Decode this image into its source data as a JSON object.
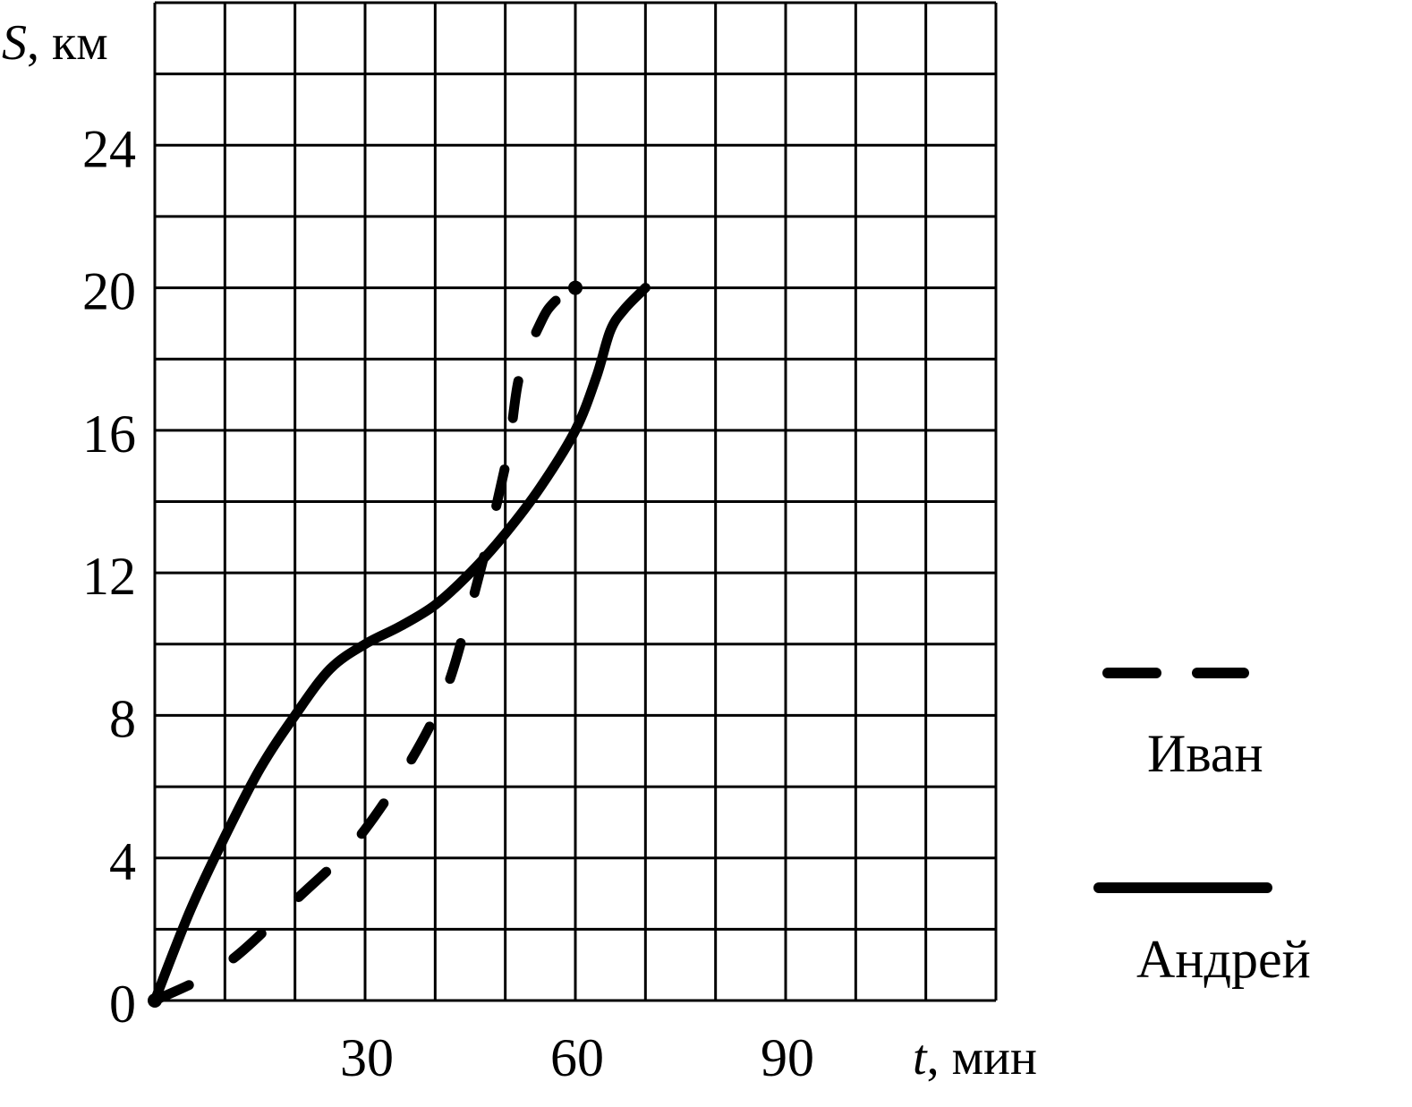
{
  "chart_data": {
    "type": "line",
    "title": "",
    "xlabel": {
      "var": "t",
      "unit": ", мин"
    },
    "ylabel": {
      "var": "S",
      "unit": ", км"
    },
    "xlim": [
      0,
      120
    ],
    "ylim": [
      0,
      28
    ],
    "grid": true,
    "x_grid_step": 10,
    "y_grid_step": 2,
    "x_ticks": [
      {
        "value": 30,
        "label": "30"
      },
      {
        "value": 60,
        "label": "60"
      },
      {
        "value": 90,
        "label": "90"
      }
    ],
    "y_ticks": [
      {
        "value": 0,
        "label": "0"
      },
      {
        "value": 4,
        "label": "4"
      },
      {
        "value": 8,
        "label": "8"
      },
      {
        "value": 12,
        "label": "12"
      },
      {
        "value": 16,
        "label": "16"
      },
      {
        "value": 20,
        "label": "20"
      },
      {
        "value": 24,
        "label": "24"
      }
    ],
    "legend_position": "right",
    "series": [
      {
        "name": "Иван",
        "style": "dashed",
        "color": "#000000",
        "x": [
          0,
          10,
          20,
          30,
          40,
          45,
          50,
          52,
          55,
          57,
          60
        ],
        "y": [
          0,
          1,
          2.8,
          4.8,
          8,
          11,
          15,
          17.5,
          19,
          19.6,
          20
        ],
        "end_marker": true
      },
      {
        "name": "Андрей",
        "style": "solid",
        "color": "#000000",
        "x": [
          0,
          5,
          10,
          15,
          20,
          25,
          30,
          35,
          40,
          45,
          50,
          55,
          60,
          63,
          65,
          67,
          70
        ],
        "y": [
          0,
          2.5,
          4.6,
          6.5,
          8,
          9.3,
          10,
          10.5,
          11.1,
          12,
          13.1,
          14.4,
          16,
          17.5,
          18.8,
          19.4,
          20
        ]
      }
    ]
  }
}
